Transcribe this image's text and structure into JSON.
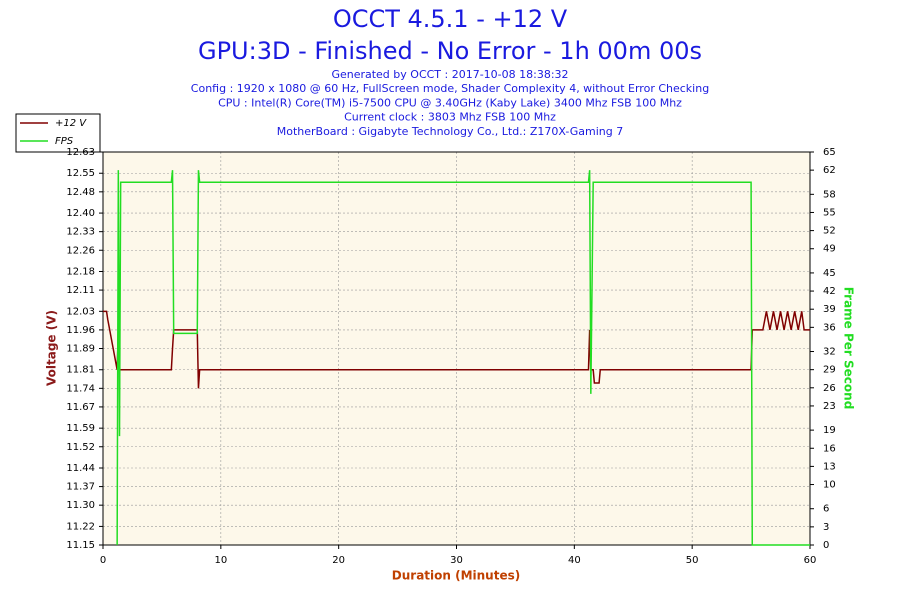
{
  "chart_data": {
    "type": "line",
    "title": "OCCT 4.5.1 - +12 V",
    "subtitle": "GPU:3D - Finished - No Error - 1h 00m 00s",
    "info": [
      "Generated by OCCT : 2017-10-08 18:38:32",
      "Config : 1920 x 1080 @ 60 Hz, FullScreen mode, Shader Complexity 4, without Error Checking",
      "CPU : Intel(R) Core(TM) i5-7500 CPU @ 3.40GHz (Kaby Lake) 3400 Mhz FSB 100 Mhz",
      "Current clock : 3803 Mhz FSB 100 Mhz",
      "MotherBoard : Gigabyte Technology Co., Ltd.: Z170X-Gaming 7"
    ],
    "x_label": "Duration (Minutes)",
    "y_label": "Voltage (V)",
    "y2_label": "Frame Per Second",
    "x": [
      0,
      0.3,
      0.4,
      1.2,
      1.3,
      1.4,
      1.5,
      1.7,
      5.8,
      5.9,
      6.0,
      8.0,
      8.1,
      8.2,
      41.2,
      41.3,
      41.4,
      41.6,
      41.7,
      42.1,
      42.2,
      55.0,
      55.1,
      56.0,
      56.3,
      56.6,
      56.9,
      57.2,
      57.5,
      57.8,
      58.1,
      58.4,
      58.7,
      59.0,
      59.3,
      59.5,
      60
    ],
    "series": [
      {
        "name": "+12 V",
        "color": "#800000",
        "values": [
          12.03,
          12.03,
          12.0,
          11.81,
          11.96,
          11.81,
          11.81,
          11.81,
          11.81,
          11.89,
          11.96,
          11.96,
          11.74,
          11.81,
          11.81,
          11.96,
          11.81,
          11.81,
          11.76,
          11.76,
          11.81,
          11.81,
          11.96,
          11.96,
          12.03,
          11.96,
          12.03,
          11.96,
          12.03,
          11.96,
          12.03,
          11.96,
          12.03,
          11.96,
          12.03,
          11.96,
          11.96
        ]
      },
      {
        "name": "FPS",
        "color": "#22dd22",
        "axis": "y2",
        "values": [
          null,
          null,
          null,
          0,
          62,
          18,
          60,
          60,
          60,
          62,
          35,
          35,
          62,
          60,
          60,
          62,
          25,
          60,
          60,
          60,
          60,
          60,
          0,
          0,
          0,
          0,
          0,
          0,
          0,
          0,
          0,
          0,
          0,
          0,
          0,
          0,
          0
        ]
      }
    ],
    "xlim": [
      0,
      60
    ],
    "xticks": [
      0,
      10,
      20,
      30,
      40,
      50,
      60
    ],
    "ylim": [
      11.15,
      12.63
    ],
    "yticks": [
      11.15,
      11.22,
      {
        "value": 11.3,
        "label": "11.30"
      },
      11.37,
      11.44,
      11.52,
      11.59,
      11.67,
      11.74,
      11.81,
      11.89,
      11.96,
      12.03,
      12.11,
      12.18,
      12.26,
      12.33,
      {
        "value": 12.4,
        "label": "12.40"
      },
      12.48,
      12.55,
      12.63
    ],
    "y2lim": [
      0,
      65
    ],
    "y2ticks": [
      0,
      3,
      6,
      10,
      13,
      16,
      19,
      23,
      26,
      29,
      32,
      36,
      39,
      42,
      45,
      49,
      52,
      55,
      58,
      62,
      65
    ],
    "grid": true
  }
}
